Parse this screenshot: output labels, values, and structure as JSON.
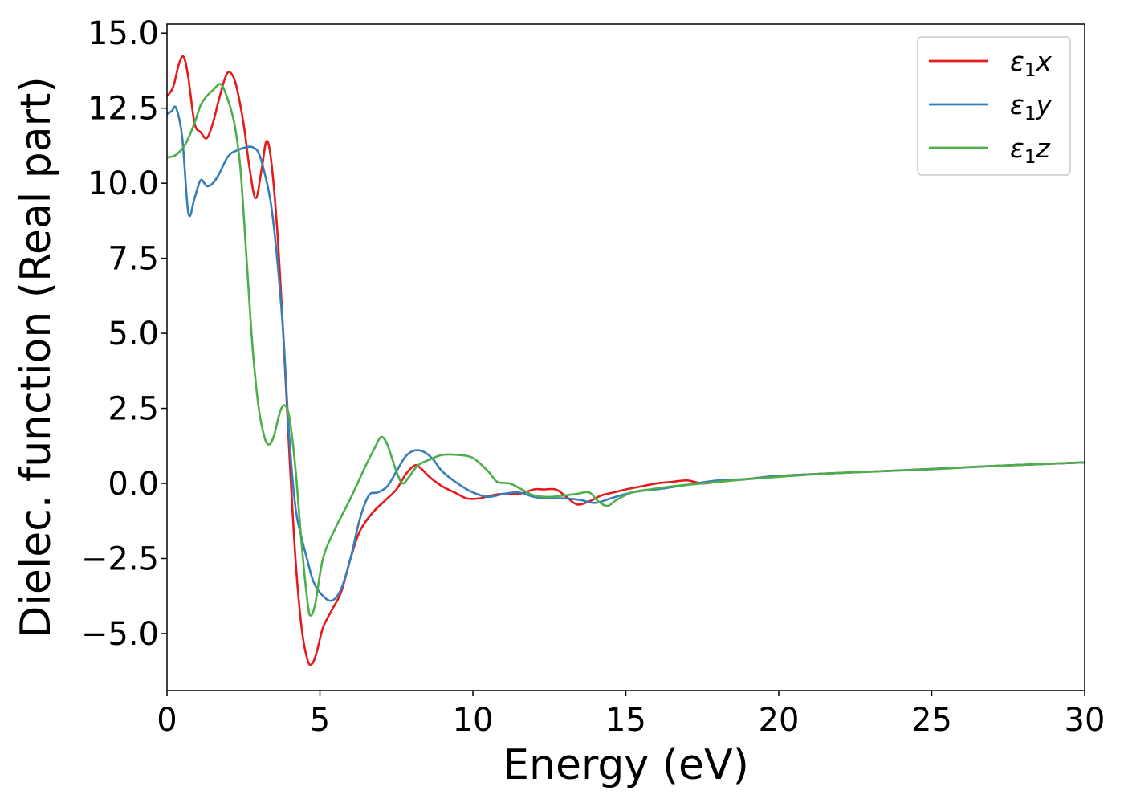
{
  "chart_data": {
    "type": "line",
    "title": "",
    "xlabel": "Energy (eV)",
    "ylabel": "Dielec. function (Real part)",
    "xlim": [
      0,
      30
    ],
    "ylim": [
      -6.9,
      15.3
    ],
    "x_ticks": [
      0,
      5,
      10,
      15,
      20,
      25,
      30
    ],
    "x_tick_labels": [
      "0",
      "5",
      "10",
      "15",
      "20",
      "25",
      "30"
    ],
    "y_ticks": [
      -5.0,
      -2.5,
      0.0,
      2.5,
      5.0,
      7.5,
      10.0,
      12.5,
      15.0
    ],
    "y_tick_labels": [
      "−5.0",
      "−2.5",
      "0.0",
      "2.5",
      "5.0",
      "7.5",
      "10.0",
      "12.5",
      "15.0"
    ],
    "grid": false,
    "legend_position": "top-right",
    "series": [
      {
        "name": "ε₁x",
        "legend_base": "ε",
        "legend_sub": "1",
        "legend_comp": "x",
        "color": "#e41a1c",
        "points": [
          [
            0,
            12.9
          ],
          [
            0.2,
            13.2
          ],
          [
            0.4,
            14.0
          ],
          [
            0.55,
            14.2
          ],
          [
            0.7,
            13.5
          ],
          [
            0.9,
            12.0
          ],
          [
            1.1,
            11.7
          ],
          [
            1.3,
            11.5
          ],
          [
            1.5,
            12.0
          ],
          [
            1.7,
            12.8
          ],
          [
            1.9,
            13.5
          ],
          [
            2.05,
            13.7
          ],
          [
            2.25,
            13.3
          ],
          [
            2.5,
            12.0
          ],
          [
            2.7,
            10.5
          ],
          [
            2.9,
            9.5
          ],
          [
            3.1,
            10.5
          ],
          [
            3.25,
            11.4
          ],
          [
            3.4,
            10.8
          ],
          [
            3.6,
            8.5
          ],
          [
            3.8,
            5.0
          ],
          [
            4.0,
            1.0
          ],
          [
            4.2,
            -2.5
          ],
          [
            4.4,
            -4.8
          ],
          [
            4.6,
            -5.9
          ],
          [
            4.75,
            -6.0
          ],
          [
            4.9,
            -5.6
          ],
          [
            5.1,
            -4.8
          ],
          [
            5.4,
            -4.2
          ],
          [
            5.7,
            -3.6
          ],
          [
            6.0,
            -2.5
          ],
          [
            6.3,
            -1.6
          ],
          [
            6.7,
            -1.0
          ],
          [
            7.1,
            -0.6
          ],
          [
            7.5,
            -0.2
          ],
          [
            7.8,
            0.3
          ],
          [
            8.1,
            0.6
          ],
          [
            8.3,
            0.5
          ],
          [
            8.6,
            0.2
          ],
          [
            9.0,
            -0.1
          ],
          [
            9.4,
            -0.3
          ],
          [
            9.8,
            -0.5
          ],
          [
            10.2,
            -0.5
          ],
          [
            10.6,
            -0.4
          ],
          [
            11.0,
            -0.35
          ],
          [
            11.5,
            -0.35
          ],
          [
            12.0,
            -0.2
          ],
          [
            12.3,
            -0.2
          ],
          [
            12.7,
            -0.2
          ],
          [
            13.0,
            -0.4
          ],
          [
            13.4,
            -0.7
          ],
          [
            13.8,
            -0.6
          ],
          [
            14.2,
            -0.4
          ],
          [
            14.6,
            -0.3
          ],
          [
            15.0,
            -0.2
          ],
          [
            15.5,
            -0.1
          ],
          [
            16.0,
            0.0
          ],
          [
            16.5,
            0.05
          ],
          [
            17.0,
            0.1
          ],
          [
            17.5,
            0.0
          ],
          [
            18.0,
            0.05
          ],
          [
            19.0,
            0.15
          ],
          [
            20.0,
            0.25
          ],
          [
            22.0,
            0.35
          ],
          [
            25.0,
            0.48
          ],
          [
            27.0,
            0.58
          ],
          [
            30.0,
            0.7
          ]
        ]
      },
      {
        "name": "ε₁y",
        "legend_base": "ε",
        "legend_sub": "1",
        "legend_comp": "y",
        "color": "#377eb8",
        "points": [
          [
            0,
            12.3
          ],
          [
            0.15,
            12.4
          ],
          [
            0.3,
            12.5
          ],
          [
            0.5,
            11.5
          ],
          [
            0.7,
            9.0
          ],
          [
            0.9,
            9.5
          ],
          [
            1.1,
            10.1
          ],
          [
            1.3,
            9.9
          ],
          [
            1.5,
            10.0
          ],
          [
            1.7,
            10.3
          ],
          [
            2.0,
            10.9
          ],
          [
            2.3,
            11.1
          ],
          [
            2.6,
            11.2
          ],
          [
            2.8,
            11.2
          ],
          [
            3.0,
            11.0
          ],
          [
            3.2,
            10.3
          ],
          [
            3.4,
            9.3
          ],
          [
            3.6,
            7.5
          ],
          [
            3.8,
            5.0
          ],
          [
            4.0,
            1.5
          ],
          [
            4.2,
            -0.8
          ],
          [
            4.4,
            -1.8
          ],
          [
            4.6,
            -2.6
          ],
          [
            4.8,
            -3.3
          ],
          [
            5.1,
            -3.75
          ],
          [
            5.4,
            -3.9
          ],
          [
            5.7,
            -3.5
          ],
          [
            6.0,
            -2.5
          ],
          [
            6.3,
            -1.2
          ],
          [
            6.6,
            -0.4
          ],
          [
            6.9,
            -0.3
          ],
          [
            7.2,
            -0.1
          ],
          [
            7.5,
            0.4
          ],
          [
            7.8,
            0.9
          ],
          [
            8.1,
            1.1
          ],
          [
            8.4,
            1.05
          ],
          [
            8.7,
            0.8
          ],
          [
            9.0,
            0.4
          ],
          [
            9.5,
            0.0
          ],
          [
            10.0,
            -0.3
          ],
          [
            10.5,
            -0.45
          ],
          [
            11.0,
            -0.35
          ],
          [
            11.5,
            -0.3
          ],
          [
            12.0,
            -0.45
          ],
          [
            12.5,
            -0.5
          ],
          [
            13.0,
            -0.5
          ],
          [
            13.5,
            -0.55
          ],
          [
            14.0,
            -0.65
          ],
          [
            14.5,
            -0.5
          ],
          [
            15.0,
            -0.35
          ],
          [
            15.5,
            -0.25
          ],
          [
            16.0,
            -0.2
          ],
          [
            17.0,
            -0.05
          ],
          [
            18.0,
            0.1
          ],
          [
            19.0,
            0.15
          ],
          [
            20.0,
            0.25
          ],
          [
            22.0,
            0.35
          ],
          [
            25.0,
            0.48
          ],
          [
            27.0,
            0.58
          ],
          [
            30.0,
            0.7
          ]
        ]
      },
      {
        "name": "ε₁z",
        "legend_base": "ε",
        "legend_sub": "1",
        "legend_comp": "z",
        "color": "#4daf4a",
        "points": [
          [
            0,
            10.85
          ],
          [
            0.3,
            10.95
          ],
          [
            0.6,
            11.3
          ],
          [
            0.9,
            12.0
          ],
          [
            1.1,
            12.6
          ],
          [
            1.3,
            12.9
          ],
          [
            1.5,
            13.1
          ],
          [
            1.75,
            13.3
          ],
          [
            1.95,
            12.9
          ],
          [
            2.2,
            12.0
          ],
          [
            2.4,
            10.5
          ],
          [
            2.6,
            7.5
          ],
          [
            2.8,
            4.5
          ],
          [
            3.0,
            2.5
          ],
          [
            3.2,
            1.5
          ],
          [
            3.35,
            1.3
          ],
          [
            3.5,
            1.6
          ],
          [
            3.7,
            2.4
          ],
          [
            3.85,
            2.6
          ],
          [
            4.0,
            2.2
          ],
          [
            4.2,
            0.5
          ],
          [
            4.4,
            -2.0
          ],
          [
            4.6,
            -4.0
          ],
          [
            4.7,
            -4.4
          ],
          [
            4.85,
            -4.0
          ],
          [
            5.1,
            -2.5
          ],
          [
            5.5,
            -1.5
          ],
          [
            6.0,
            -0.5
          ],
          [
            6.5,
            0.6
          ],
          [
            6.8,
            1.2
          ],
          [
            7.0,
            1.55
          ],
          [
            7.2,
            1.3
          ],
          [
            7.5,
            0.4
          ],
          [
            7.7,
            0.0
          ],
          [
            7.9,
            0.2
          ],
          [
            8.2,
            0.6
          ],
          [
            8.6,
            0.8
          ],
          [
            9.0,
            0.95
          ],
          [
            9.5,
            0.95
          ],
          [
            10.0,
            0.85
          ],
          [
            10.5,
            0.4
          ],
          [
            10.8,
            0.05
          ],
          [
            11.2,
            0.0
          ],
          [
            11.6,
            -0.2
          ],
          [
            12.0,
            -0.4
          ],
          [
            12.5,
            -0.45
          ],
          [
            13.0,
            -0.4
          ],
          [
            13.4,
            -0.35
          ],
          [
            13.8,
            -0.3
          ],
          [
            14.1,
            -0.6
          ],
          [
            14.4,
            -0.75
          ],
          [
            14.7,
            -0.55
          ],
          [
            15.2,
            -0.3
          ],
          [
            15.8,
            -0.2
          ],
          [
            16.5,
            -0.1
          ],
          [
            17.5,
            0.0
          ],
          [
            18.5,
            0.1
          ],
          [
            20.0,
            0.22
          ],
          [
            22.0,
            0.35
          ],
          [
            25.0,
            0.47
          ],
          [
            27.0,
            0.58
          ],
          [
            30.0,
            0.7
          ]
        ]
      }
    ]
  }
}
